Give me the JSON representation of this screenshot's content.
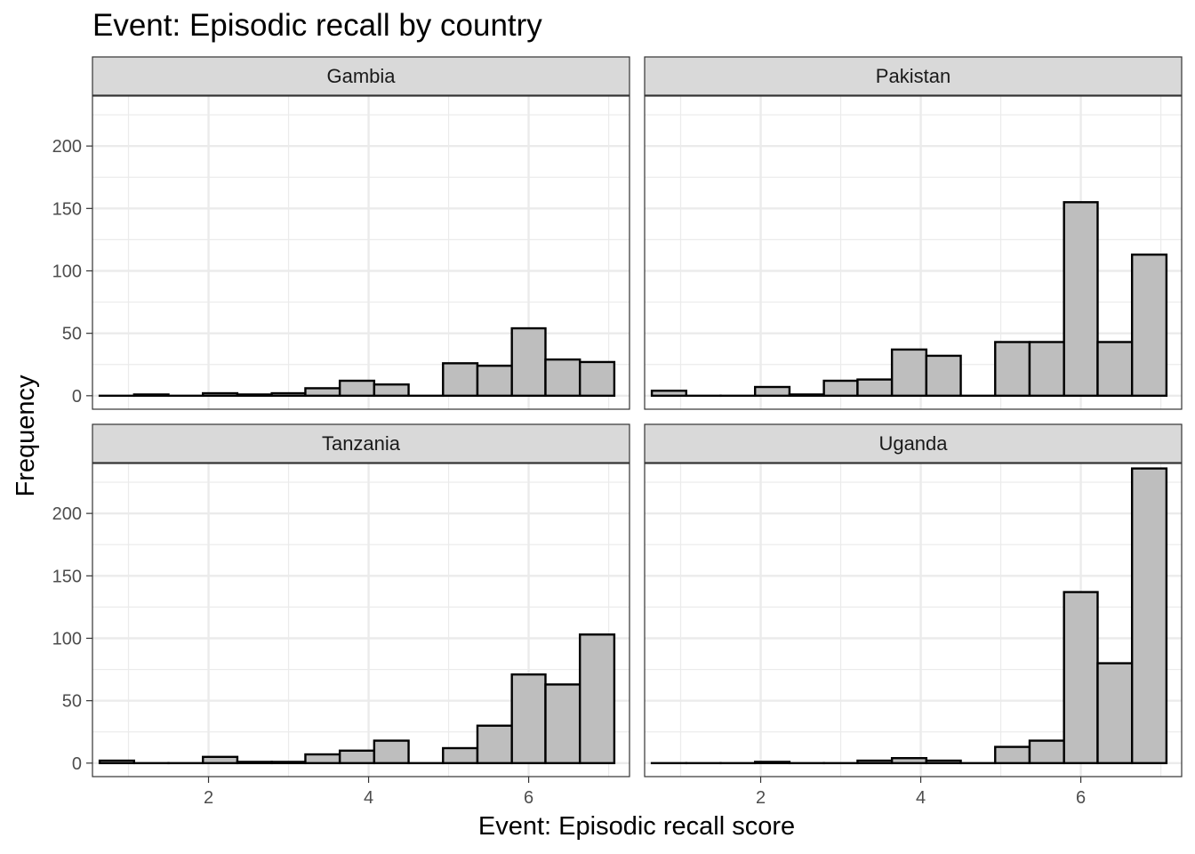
{
  "chart_data": {
    "type": "bar",
    "title": "Event: Episodic recall by country",
    "xlabel": "Event: Episodic recall score",
    "ylabel": "Frequency",
    "xlim": [
      0.55,
      7.26
    ],
    "ylim": [
      -10.8,
      240
    ],
    "x_ticks": [
      2,
      4,
      6
    ],
    "y_ticks": [
      0,
      50,
      100,
      150,
      200
    ],
    "grid": true,
    "bin_edges": [
      0.64,
      1.07,
      1.5,
      1.93,
      2.36,
      2.79,
      3.21,
      3.64,
      4.07,
      4.5,
      4.93,
      5.36,
      5.79,
      6.21,
      6.64,
      7.07
    ],
    "panels": [
      {
        "name": "Gambia",
        "values": [
          0,
          1,
          0,
          2,
          1,
          2,
          6,
          12,
          9,
          0,
          26,
          24,
          54,
          29,
          27
        ]
      },
      {
        "name": "Pakistan",
        "values": [
          4,
          0,
          0,
          7,
          1,
          12,
          13,
          37,
          32,
          0,
          43,
          43,
          155,
          43,
          113
        ]
      },
      {
        "name": "Tanzania",
        "values": [
          2,
          0,
          0,
          5,
          1,
          1,
          7,
          10,
          18,
          0,
          12,
          30,
          71,
          63,
          103
        ]
      },
      {
        "name": "Uganda",
        "values": [
          0,
          0,
          0,
          1,
          0,
          0,
          2,
          4,
          2,
          0,
          13,
          18,
          137,
          80,
          236
        ]
      }
    ],
    "colors": {
      "bar_fill": "#bebebe",
      "bar_stroke": "#000000",
      "strip_fill": "#d9d9d9",
      "grid": "#ebebeb"
    }
  }
}
